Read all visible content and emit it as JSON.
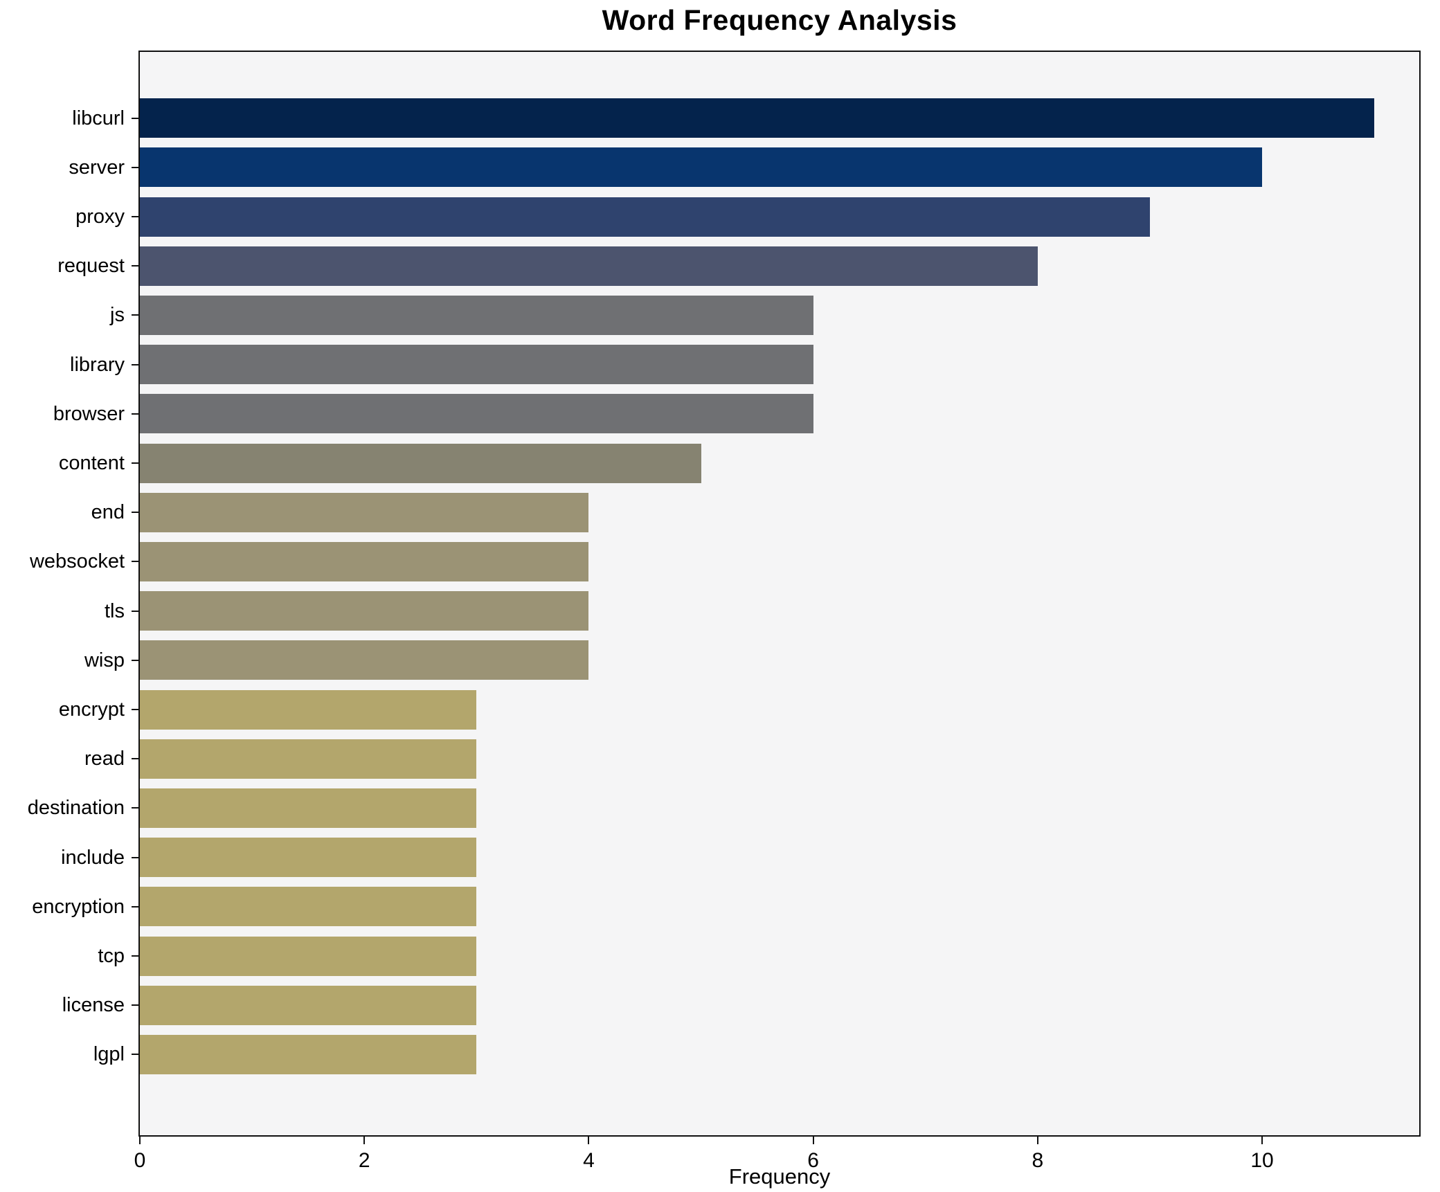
{
  "chart_data": {
    "type": "bar",
    "orientation": "horizontal",
    "title": "Word Frequency Analysis",
    "xlabel": "Frequency",
    "ylabel": "",
    "categories": [
      "libcurl",
      "server",
      "proxy",
      "request",
      "js",
      "library",
      "browser",
      "content",
      "end",
      "websocket",
      "tls",
      "wisp",
      "encrypt",
      "read",
      "destination",
      "include",
      "encryption",
      "tcp",
      "license",
      "lgpl"
    ],
    "values": [
      11,
      10,
      9,
      8,
      6,
      6,
      6,
      5,
      4,
      4,
      4,
      4,
      3,
      3,
      3,
      3,
      3,
      3,
      3,
      3
    ],
    "bar_colors": [
      "#04234c",
      "#08356e",
      "#2f436e",
      "#4c546e",
      "#6f7073",
      "#6f7073",
      "#6f7073",
      "#868371",
      "#9b9375",
      "#9b9375",
      "#9b9375",
      "#9b9375",
      "#b3a66c",
      "#b3a66c",
      "#b3a66c",
      "#b3a66c",
      "#b3a66c",
      "#b3a66c",
      "#b3a66c",
      "#b3a66c"
    ],
    "xlim": [
      0,
      11.4
    ],
    "xticks": [
      0,
      2,
      4,
      6,
      8,
      10
    ],
    "grid": false,
    "legend": null,
    "plot_bg": "#f5f5f6",
    "fig_bg": "#ffffff",
    "spine_color": "#111111"
  }
}
